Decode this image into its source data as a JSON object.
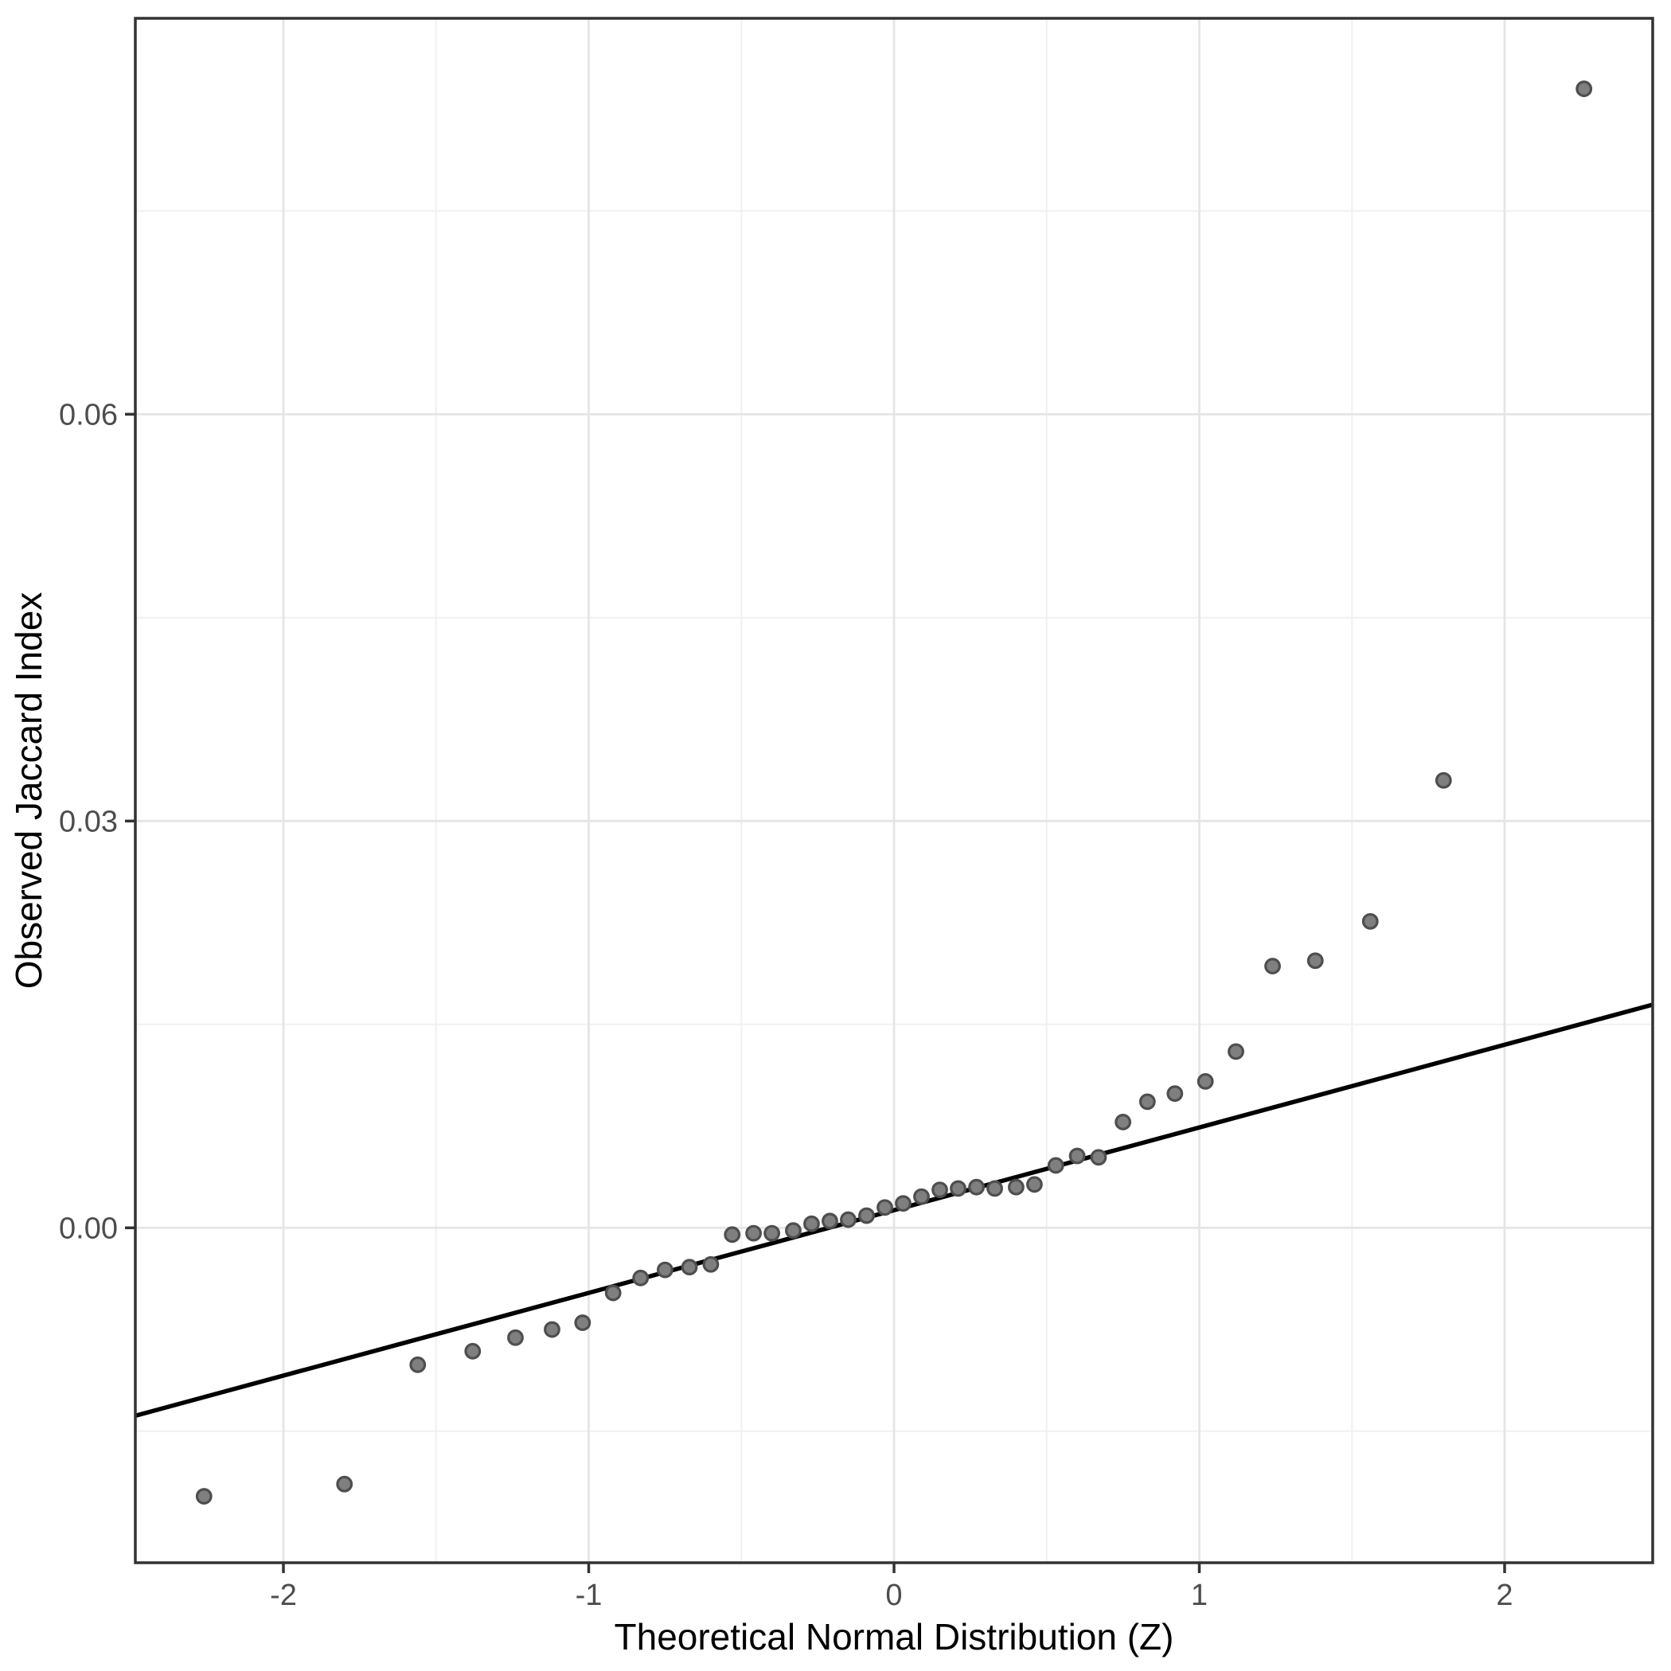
{
  "figure": {
    "background": "#ffffff",
    "title": ""
  },
  "chart_data": {
    "type": "scatter",
    "title": "",
    "xlabel": "Theoretical Normal Distribution (Z)",
    "ylabel": "Observed Jaccard Index",
    "xlim": [
      -2.485,
      2.485
    ],
    "ylim": [
      -0.0247,
      0.0892
    ],
    "grid": true,
    "legend": "none",
    "x_ticks": {
      "values": [
        -2,
        -1,
        0,
        1,
        2
      ],
      "labels": [
        "-2",
        "-1",
        "0",
        "1",
        "2"
      ],
      "minor": [
        -1.5,
        -0.5,
        0.5,
        1.5
      ]
    },
    "y_ticks": {
      "values": [
        0.0,
        0.03,
        0.06
      ],
      "labels": [
        "0.00",
        "0.03",
        "0.06"
      ],
      "minor": [
        -0.015,
        0.015,
        0.045,
        0.075
      ]
    },
    "points": [
      {
        "x": -2.26,
        "y": -0.0198
      },
      {
        "x": -1.8,
        "y": -0.0189
      },
      {
        "x": -1.56,
        "y": -0.0101
      },
      {
        "x": -1.38,
        "y": -0.0091
      },
      {
        "x": -1.24,
        "y": -0.0081
      },
      {
        "x": -1.12,
        "y": -0.0075
      },
      {
        "x": -1.02,
        "y": -0.007
      },
      {
        "x": -0.92,
        "y": -0.0048
      },
      {
        "x": -0.83,
        "y": -0.0037
      },
      {
        "x": -0.75,
        "y": -0.0031
      },
      {
        "x": -0.67,
        "y": -0.0029
      },
      {
        "x": -0.6,
        "y": -0.0027
      },
      {
        "x": -0.53,
        "y": -0.0005
      },
      {
        "x": -0.46,
        "y": -0.0004
      },
      {
        "x": -0.4,
        "y": -0.0004
      },
      {
        "x": -0.33,
        "y": -0.0002
      },
      {
        "x": -0.27,
        "y": 0.0003
      },
      {
        "x": -0.21,
        "y": 0.0005
      },
      {
        "x": -0.15,
        "y": 0.0006
      },
      {
        "x": -0.09,
        "y": 0.0009
      },
      {
        "x": -0.03,
        "y": 0.0015
      },
      {
        "x": 0.03,
        "y": 0.0018
      },
      {
        "x": 0.09,
        "y": 0.0023
      },
      {
        "x": 0.15,
        "y": 0.0028
      },
      {
        "x": 0.21,
        "y": 0.0029
      },
      {
        "x": 0.27,
        "y": 0.003
      },
      {
        "x": 0.33,
        "y": 0.0029
      },
      {
        "x": 0.4,
        "y": 0.003
      },
      {
        "x": 0.46,
        "y": 0.0032
      },
      {
        "x": 0.53,
        "y": 0.0046
      },
      {
        "x": 0.6,
        "y": 0.0053
      },
      {
        "x": 0.67,
        "y": 0.0052
      },
      {
        "x": 0.75,
        "y": 0.0078
      },
      {
        "x": 0.83,
        "y": 0.0093
      },
      {
        "x": 0.92,
        "y": 0.0099
      },
      {
        "x": 1.02,
        "y": 0.0108
      },
      {
        "x": 1.12,
        "y": 0.013
      },
      {
        "x": 1.24,
        "y": 0.0193
      },
      {
        "x": 1.38,
        "y": 0.0197
      },
      {
        "x": 1.56,
        "y": 0.0226
      },
      {
        "x": 1.8,
        "y": 0.033
      },
      {
        "x": 2.26,
        "y": 0.084
      }
    ],
    "reference_line": {
      "intercept": 0.0013,
      "slope": 0.0061
    },
    "style": {
      "point_fill": "#7f7f7f",
      "point_stroke": "#4e4e4e",
      "ref_line_color": "#000000",
      "grid_major_color": "#e5e5e5",
      "grid_minor_color": "#f0f0f0",
      "panel_border_color": "#333333",
      "tick_mark_color": "#333333",
      "tick_label_color": "#4d4d4d",
      "axis_title_color": "#000000",
      "panel_background": "#ffffff"
    }
  }
}
